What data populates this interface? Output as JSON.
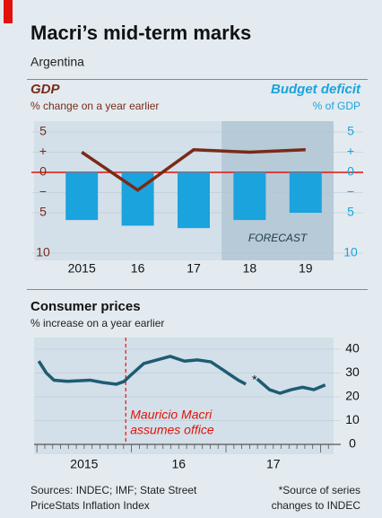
{
  "header": {
    "title": "Macri’s mid-term marks",
    "subtitle": "Argentina"
  },
  "chart_data": [
    {
      "type": "bar",
      "categories": [
        "2015",
        "16",
        "17",
        "18",
        "19"
      ],
      "left_label": "GDP",
      "left_sublabel": "% change on a year earlier",
      "right_label": "Budget deficit",
      "right_sublabel": "% of GDP",
      "ylim": [
        -10,
        5
      ],
      "yticks": [
        5,
        {
          "value": 2.5,
          "label": "+"
        },
        0,
        {
          "value": -2.5,
          "label": "−"
        },
        {
          "value": -5,
          "label": "5"
        },
        {
          "value": -10,
          "label": "10"
        }
      ],
      "y2lim": [
        -10,
        5
      ],
      "y2ticks": [
        5,
        {
          "value": 2.5,
          "label": "+"
        },
        0,
        {
          "value": -2.5,
          "label": "−"
        },
        {
          "value": -5,
          "label": "5"
        },
        {
          "value": -10,
          "label": "10"
        }
      ],
      "forecast": {
        "label": "FORECAST",
        "categories": [
          "18",
          "19"
        ]
      },
      "series": [
        {
          "name": "Budget deficit",
          "type": "bar",
          "axis": "y2",
          "color": "#1ba3dd",
          "values": [
            -5.9,
            -6.6,
            -6.9,
            -5.9,
            -5.0
          ]
        },
        {
          "name": "GDP",
          "type": "line",
          "axis": "y",
          "color": "#7a2a18",
          "values": [
            2.5,
            -2.2,
            2.8,
            2.5,
            2.8
          ]
        }
      ]
    },
    {
      "type": "line",
      "title": "Consumer prices",
      "subtitle": "% increase on a year earlier",
      "xlim": [
        2014.97,
        2018.1
      ],
      "xticks": [
        {
          "value": 2015.5,
          "label": "2015"
        },
        {
          "value": 2016.5,
          "label": "16"
        },
        {
          "value": 2017.5,
          "label": "17"
        }
      ],
      "ylim": [
        0,
        40
      ],
      "yticks": [
        0,
        10,
        20,
        30,
        40
      ],
      "event": {
        "x": 2015.94,
        "label": [
          "Mauricio Macri",
          "assumes office"
        ],
        "color": "#e3120b"
      },
      "gap_note": "*",
      "series": [
        {
          "name": "Consumer prices",
          "color": "#1d5c73",
          "x": [
            2015.02,
            2015.1,
            2015.18,
            2015.32,
            2015.56,
            2015.7,
            2015.84,
            2015.92,
            2015.99,
            2016.13,
            2016.27,
            2016.41,
            2016.56,
            2016.7,
            2016.84,
            2016.98,
            2017.13,
            2017.21,
            2017.25,
            2017.33,
            2017.46,
            2017.57,
            2017.69,
            2017.81,
            2017.93,
            2018.05
          ],
          "values": [
            35,
            30,
            27,
            26.5,
            27,
            26,
            25.3,
            26.4,
            29,
            34,
            35.5,
            37,
            35,
            35.5,
            34.7,
            31,
            27,
            25.3,
            null,
            27.5,
            23,
            21.5,
            23,
            24,
            23,
            25
          ]
        }
      ]
    }
  ],
  "footer": {
    "sources": [
      "Sources: INDEC; IMF; State Street",
      "PriceStats Inflation Index"
    ],
    "note": [
      "*Source of series",
      "changes to INDEC"
    ]
  }
}
